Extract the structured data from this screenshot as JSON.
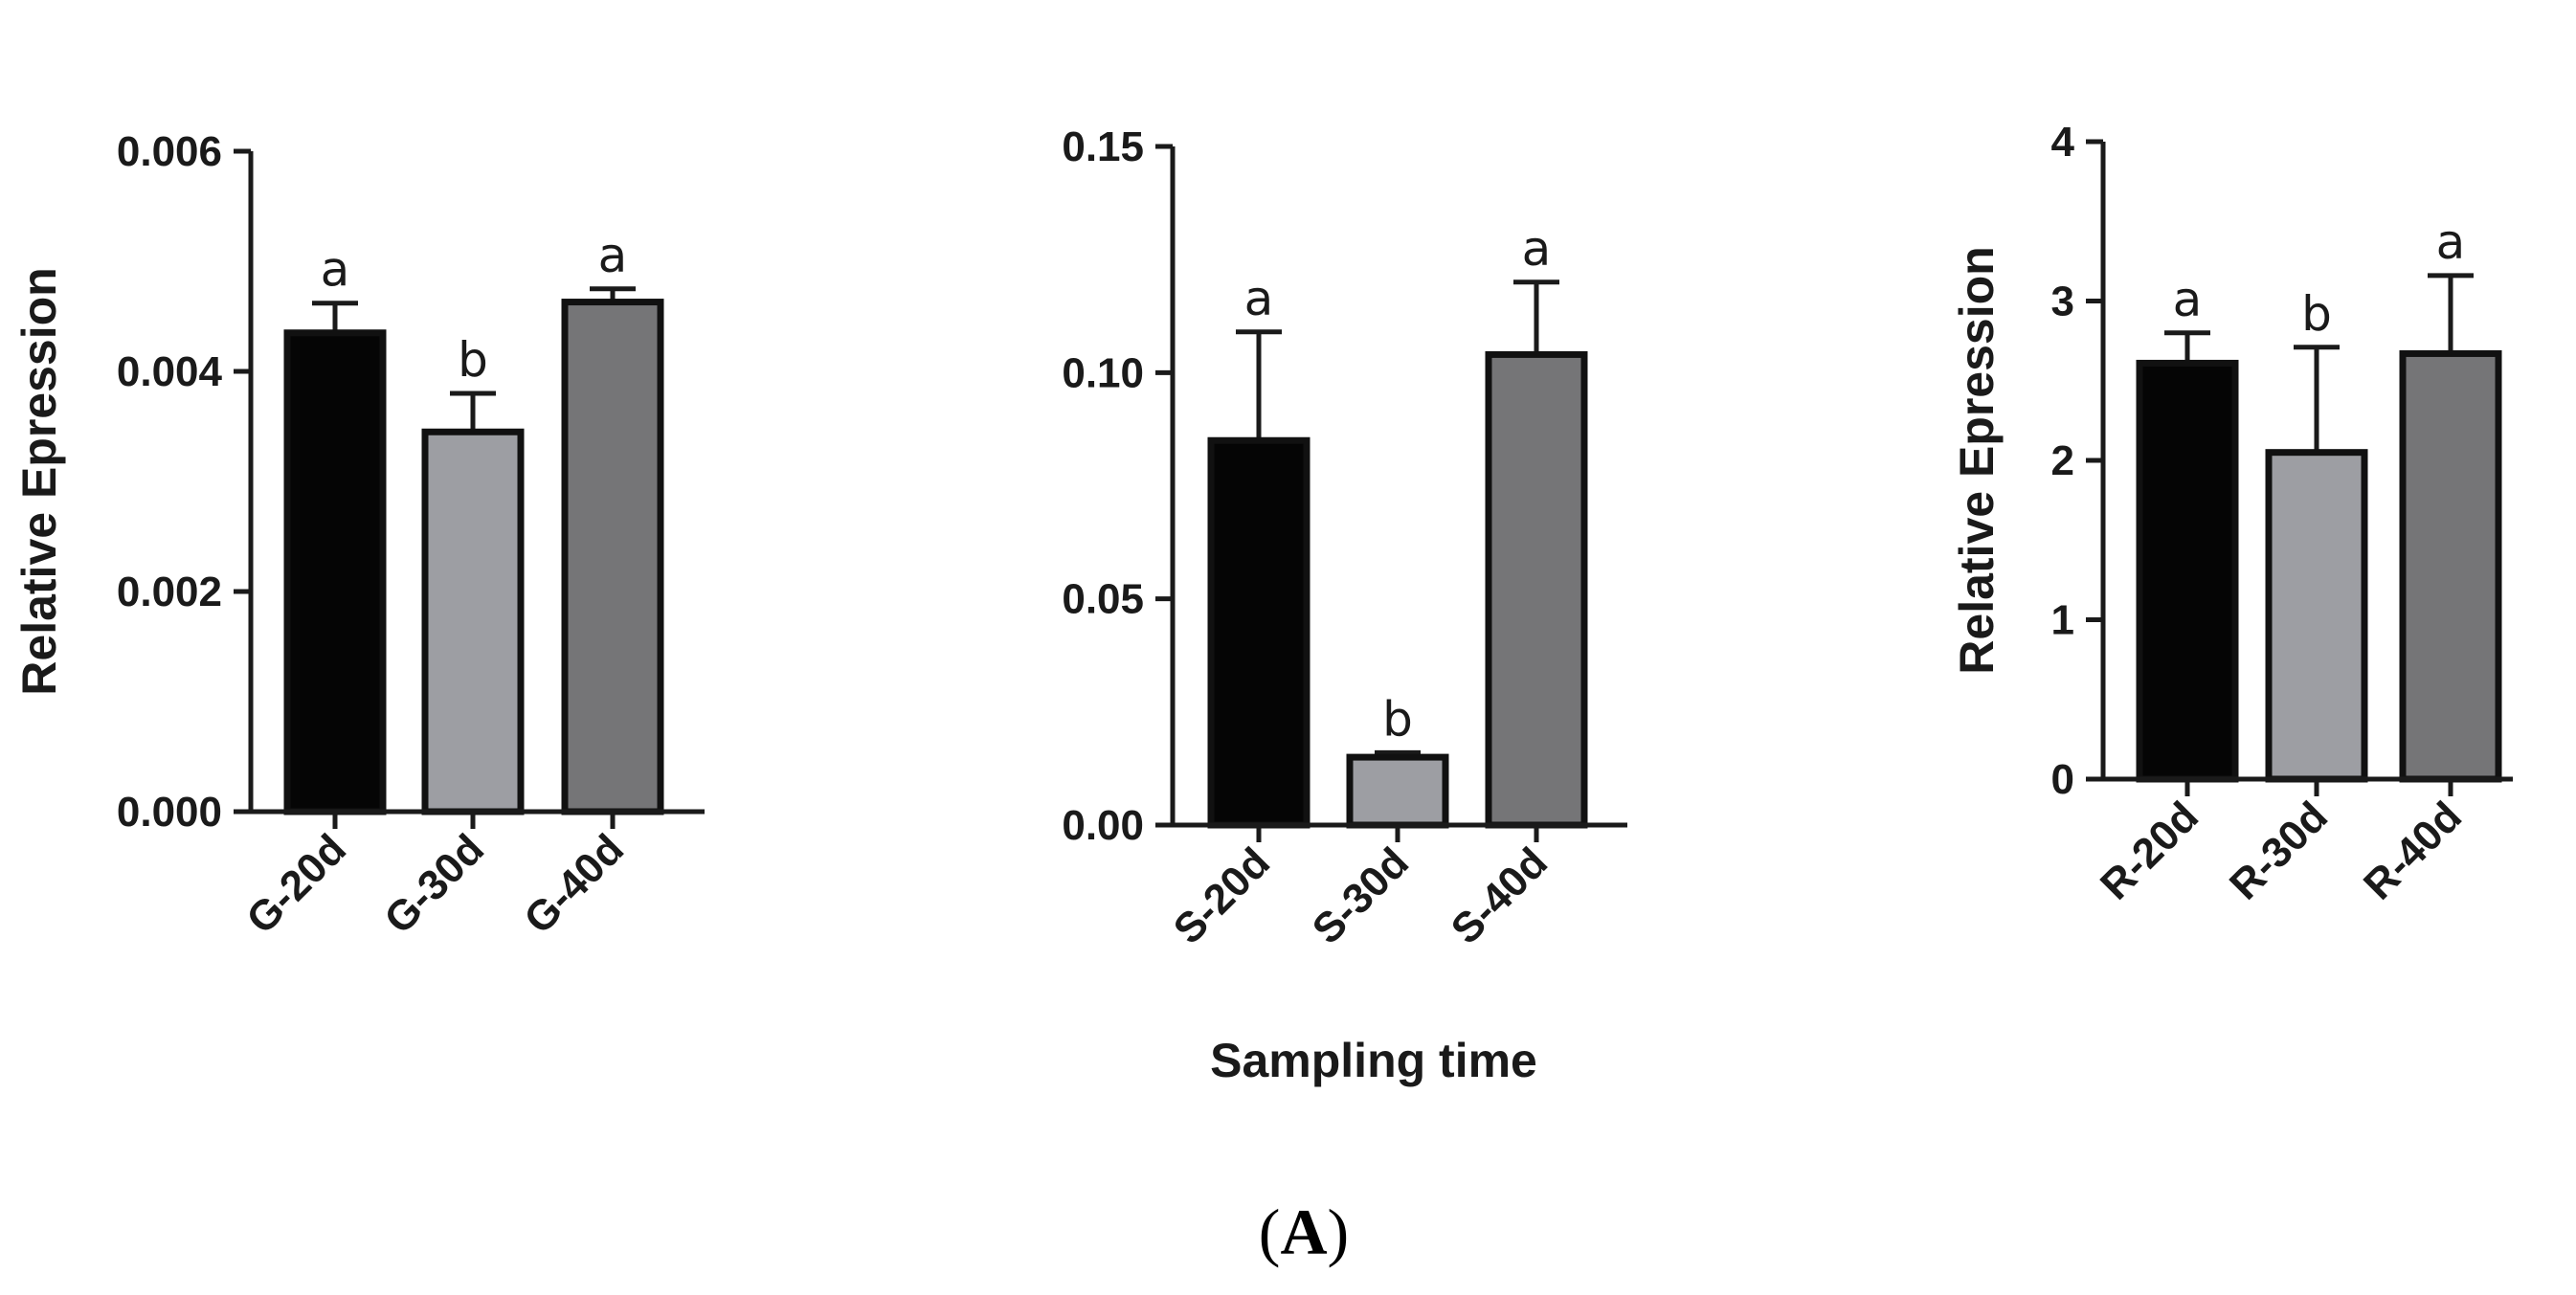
{
  "figure": {
    "panel_open": "(",
    "panel_letter": "A",
    "panel_close": ")",
    "shared_xlabel": "Sampling time"
  },
  "chart_data": [
    {
      "type": "bar",
      "title": "",
      "xlabel": "",
      "ylabel": "Relative Epression",
      "ylim": [
        0,
        0.006
      ],
      "yticks": [
        "0.000",
        "0.002",
        "0.004",
        "0.006"
      ],
      "categories": [
        "G-20d",
        "G-30d",
        "G-40d"
      ],
      "values": [
        0.00435,
        0.00345,
        0.00463
      ],
      "errors": [
        0.00027,
        0.00035,
        0.00012
      ],
      "significance": [
        "a",
        "b",
        "a"
      ],
      "colors": [
        "#050505",
        "#9d9ea3",
        "#757577"
      ]
    },
    {
      "type": "bar",
      "title": "",
      "xlabel": "Sampling time",
      "ylabel": "",
      "ylim": [
        0,
        0.15
      ],
      "yticks": [
        "0.00",
        "0.05",
        "0.10",
        "0.15"
      ],
      "categories": [
        "S-20d",
        "S-30d",
        "S-40d"
      ],
      "values": [
        0.085,
        0.015,
        0.104
      ],
      "errors": [
        0.024,
        0.001,
        0.016
      ],
      "significance": [
        "a",
        "b",
        "a"
      ],
      "colors": [
        "#050505",
        "#9d9ea3",
        "#757577"
      ]
    },
    {
      "type": "bar",
      "title": "",
      "xlabel": "",
      "ylabel": "Relative Epression",
      "ylim": [
        0,
        4
      ],
      "yticks": [
        "0",
        "1",
        "2",
        "3",
        "4"
      ],
      "categories": [
        "R-20d",
        "R-30d",
        "R-40d"
      ],
      "values": [
        2.61,
        2.05,
        2.67
      ],
      "errors": [
        0.19,
        0.66,
        0.49
      ],
      "significance": [
        "a",
        "b",
        "a"
      ],
      "colors": [
        "#050505",
        "#9d9ea3",
        "#757577"
      ]
    }
  ]
}
